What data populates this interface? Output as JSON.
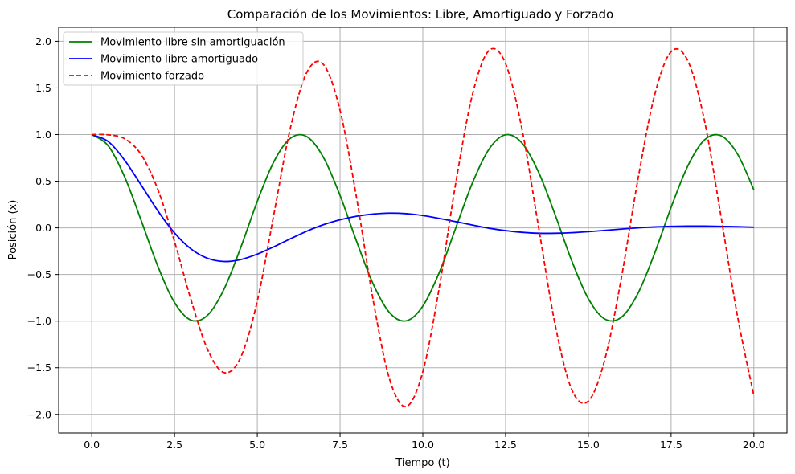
{
  "chart_data": {
    "type": "line",
    "title": "Comparación de los Movimientos: Libre, Amortiguado y Forzado",
    "xlabel": "Tiempo (t)",
    "ylabel": "Posición (x)",
    "xlim": [
      -1.0,
      21.0
    ],
    "ylim": [
      -2.2,
      2.15
    ],
    "xticks": [
      0.0,
      2.5,
      5.0,
      7.5,
      10.0,
      12.5,
      15.0,
      17.5,
      20.0
    ],
    "xtick_labels": [
      "0.0",
      "2.5",
      "5.0",
      "7.5",
      "10.0",
      "12.5",
      "15.0",
      "17.5",
      "20.0"
    ],
    "yticks": [
      -2.0,
      -1.5,
      -1.0,
      -0.5,
      0.0,
      0.5,
      1.0,
      1.5,
      2.0
    ],
    "ytick_labels": [
      "−2.0",
      "−1.5",
      "−1.0",
      "−0.5",
      "0.0",
      "0.5",
      "1.0",
      "1.5",
      "2.0"
    ],
    "grid": true,
    "legend_position": "upper-left",
    "x": [
      0,
      0.5,
      1,
      1.5,
      2,
      2.5,
      3,
      3.5,
      4,
      4.5,
      5,
      5.5,
      6,
      6.5,
      7,
      7.5,
      8,
      8.5,
      9,
      9.5,
      10,
      10.5,
      11,
      11.5,
      12,
      12.5,
      13,
      13.5,
      14,
      14.5,
      15,
      15.5,
      16,
      16.5,
      17,
      17.5,
      18,
      18.5,
      19,
      19.5,
      20
    ],
    "series": [
      {
        "name": "Movimiento libre sin amortiguación",
        "color": "#008000",
        "dash": "solid",
        "values": [
          1.0,
          0.878,
          0.54,
          0.071,
          -0.416,
          -0.801,
          -0.99,
          -0.936,
          -0.654,
          -0.211,
          0.284,
          0.709,
          0.96,
          0.977,
          0.754,
          0.347,
          -0.146,
          -0.602,
          -0.911,
          -0.997,
          -0.839,
          -0.476,
          0.004,
          0.483,
          0.844,
          0.998,
          0.907,
          0.594,
          0.137,
          -0.355,
          -0.76,
          -0.978,
          -0.958,
          -0.702,
          -0.275,
          0.22,
          0.66,
          0.94,
          0.989,
          0.795,
          0.408
        ]
      },
      {
        "name": "Movimiento libre amortiguado",
        "color": "#0000ff",
        "dash": "solid",
        "values": [
          1.0,
          0.924,
          0.721,
          0.454,
          0.18,
          -0.055,
          -0.227,
          -0.327,
          -0.361,
          -0.34,
          -0.282,
          -0.203,
          -0.117,
          -0.035,
          0.034,
          0.087,
          0.125,
          0.148,
          0.158,
          0.152,
          0.132,
          0.101,
          0.066,
          0.03,
          -0.004,
          -0.03,
          -0.048,
          -0.058,
          -0.058,
          -0.052,
          -0.041,
          -0.027,
          -0.013,
          0.0,
          0.01,
          0.016,
          0.019,
          0.019,
          0.016,
          0.012,
          0.007
        ]
      },
      {
        "name": "Movimiento forzado",
        "color": "#ff0000",
        "dash": "dashed",
        "values": [
          1.0,
          0.997,
          0.954,
          0.78,
          0.407,
          -0.148,
          -0.775,
          -1.306,
          -1.553,
          -1.387,
          -0.785,
          0.144,
          1.072,
          1.67,
          1.751,
          1.259,
          0.318,
          -0.776,
          -1.628,
          -1.916,
          -1.543,
          -0.634,
          0.491,
          1.431,
          1.902,
          1.76,
          1.051,
          0.0,
          -1.043,
          -1.735,
          -1.858,
          -1.409,
          -0.532,
          0.525,
          1.421,
          1.889,
          1.794,
          1.162,
          0.137,
          -0.936,
          -1.8
        ]
      }
    ]
  }
}
